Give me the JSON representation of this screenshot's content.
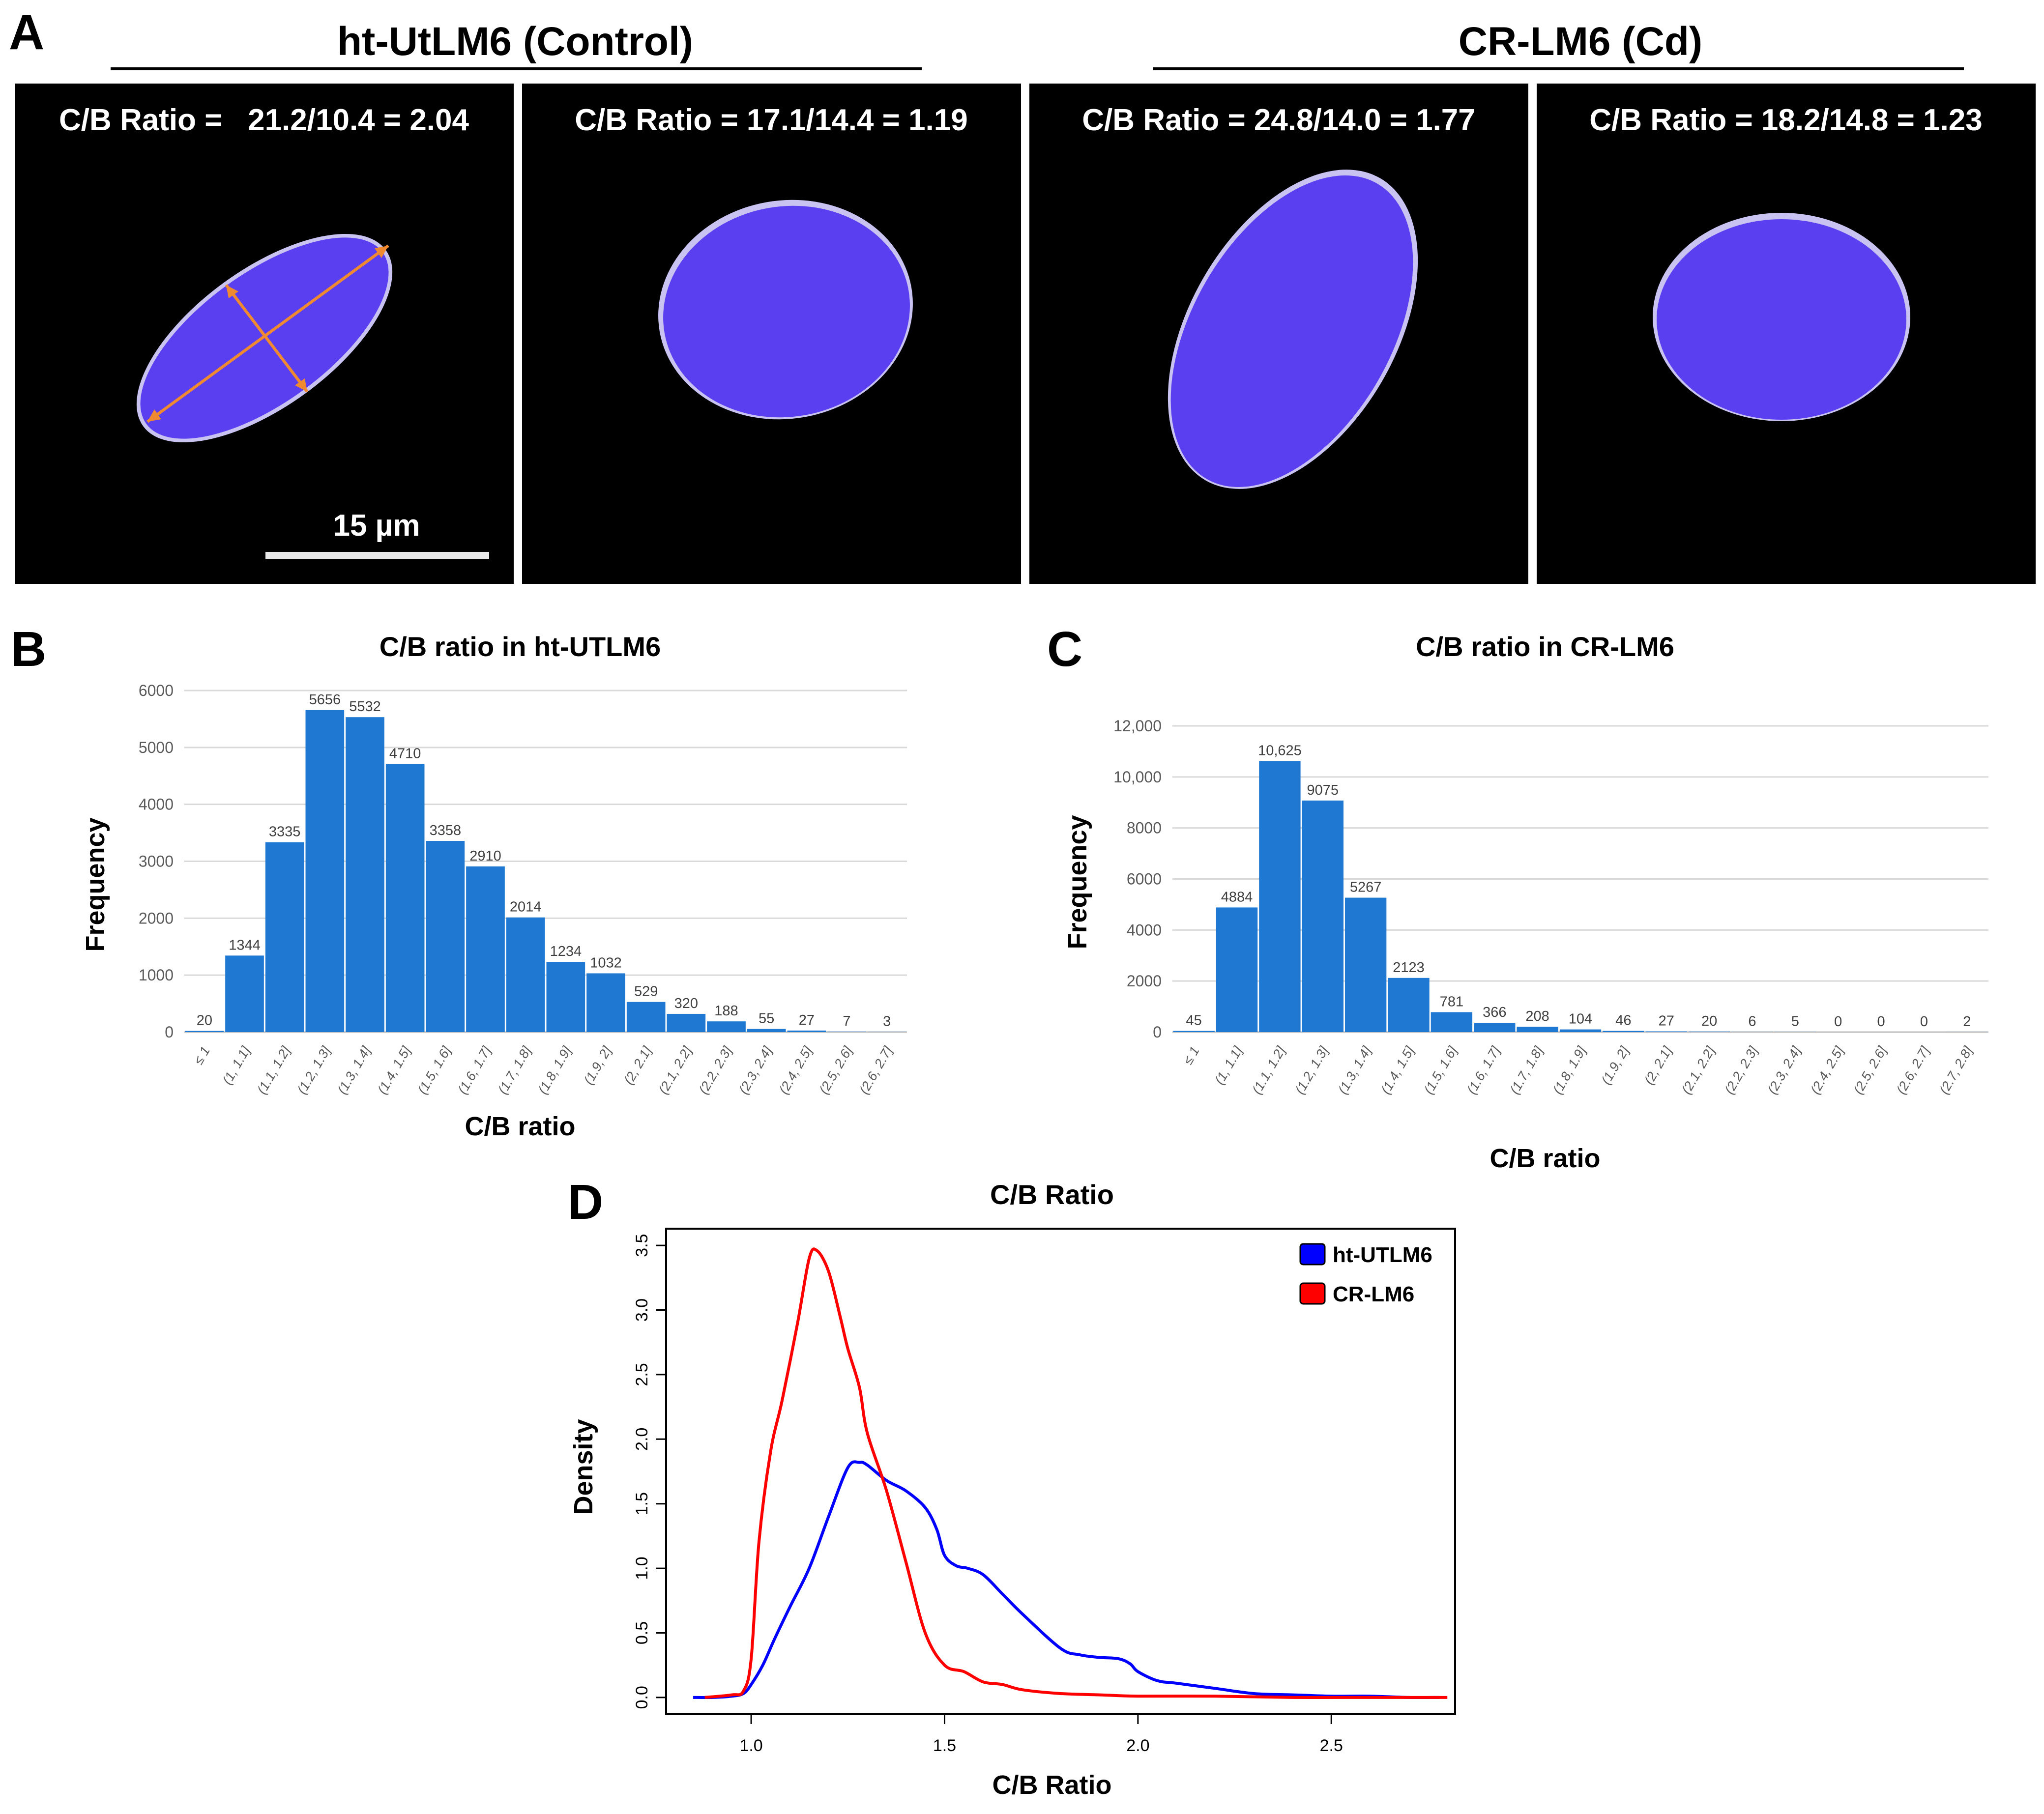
{
  "panel_a": {
    "letter": "A",
    "groups": [
      {
        "title": "ht-UtLM6 (Control)"
      },
      {
        "title": "CR-LM6 (Cd)"
      }
    ],
    "images": [
      {
        "ratio_label": "C/B Ratio =   21.2/10.4 = 2.04",
        "cell": "nucleus-elongated-with-axes"
      },
      {
        "ratio_label": "C/B Ratio = 17.1/14.4 = 1.19",
        "cell": "nucleus-round"
      },
      {
        "ratio_label": "C/B Ratio = 24.8/14.0 = 1.77",
        "cell": "nucleus-oval"
      },
      {
        "ratio_label": "C/B Ratio = 18.2/14.8 = 1.23",
        "cell": "nucleus-round"
      }
    ],
    "scale_bar": "15 µm",
    "colors": {
      "nucleus": "#5a3ff0",
      "rim": "#c9c3f2",
      "axes": "#f08a30",
      "background": "#000000"
    }
  },
  "chart_data": [
    {
      "id": "B",
      "letter": "B",
      "type": "bar",
      "title": "C/B ratio in ht-UTLM6",
      "xlabel": "C/B ratio",
      "ylabel": "Frequency",
      "ylim": [
        0,
        6000
      ],
      "yticks": [
        "0",
        "1000",
        "2000",
        "3000",
        "4000",
        "5000",
        "6000"
      ],
      "categories": [
        "≤ 1",
        "(1, 1.1]",
        "(1.1, 1.2]",
        "(1.2, 1.3]",
        "(1.3, 1.4]",
        "(1.4, 1.5]",
        "(1.5, 1.6]",
        "(1.6, 1.7]",
        "(1.7, 1.8]",
        "(1.8, 1.9]",
        "(1.9, 2]",
        "(2, 2.1]",
        "(2.1, 2.2]",
        "(2.2, 2.3]",
        "(2.3, 2.4]",
        "(2.4, 2.5]",
        "(2.5, 2.6]",
        "(2.6, 2.7]"
      ],
      "values": [
        20,
        1344,
        3335,
        5656,
        5532,
        4710,
        3358,
        2910,
        2014,
        1234,
        1032,
        529,
        320,
        188,
        55,
        27,
        7,
        3
      ],
      "value_labels": [
        "20",
        "1344",
        "3335",
        "5656",
        "5532",
        "4710",
        "3358",
        "2910",
        "2014",
        "1234",
        "1032",
        "529",
        "320",
        "188",
        "55",
        "27",
        "7",
        "3"
      ],
      "grid": true,
      "color": "#1f78d1"
    },
    {
      "id": "C",
      "letter": "C",
      "type": "bar",
      "title": "C/B ratio in CR-LM6",
      "xlabel": "C/B ratio",
      "ylabel": "Frequency",
      "ylim": [
        0,
        12000
      ],
      "yticks": [
        "0",
        "2000",
        "4000",
        "6000",
        "8000",
        "10,000",
        "12,000"
      ],
      "categories": [
        "≤ 1",
        "(1, 1.1]",
        "(1.1, 1.2]",
        "(1.2, 1.3]",
        "(1.3, 1.4]",
        "(1.4, 1.5]",
        "(1.5, 1.6]",
        "(1.6, 1.7]",
        "(1.7, 1.8]",
        "(1.8, 1.9]",
        "(1.9, 2]",
        "(2, 2.1]",
        "(2.1, 2.2]",
        "(2.2, 2.3]",
        "(2.3, 2.4]",
        "(2.4, 2.5]",
        "(2.5, 2.6]",
        "(2.6, 2.7]",
        "(2.7, 2.8]"
      ],
      "values": [
        45,
        4884,
        10625,
        9075,
        5267,
        2123,
        781,
        366,
        208,
        104,
        46,
        27,
        20,
        6,
        5,
        0,
        0,
        0,
        2
      ],
      "value_labels": [
        "45",
        "4884",
        "10,625",
        "9075",
        "5267",
        "2123",
        "781",
        "366",
        "208",
        "104",
        "46",
        "27",
        "20",
        "6",
        "5",
        "0",
        "0",
        "0",
        "2"
      ],
      "grid": true,
      "color": "#1f78d1"
    },
    {
      "id": "D",
      "letter": "D",
      "type": "line",
      "title": "C/B Ratio",
      "xlabel": "C/B Ratio",
      "ylabel": "Density",
      "xlim": [
        0.78,
        2.82
      ],
      "ylim": [
        -0.13,
        3.63
      ],
      "xticks": [
        "1.0",
        "1.5",
        "2.0",
        "2.5"
      ],
      "yticks": [
        "0.0",
        "0.5",
        "1.0",
        "1.5",
        "2.0",
        "2.5",
        "3.0",
        "3.5"
      ],
      "legend_position": "top-right",
      "series": [
        {
          "name": "ht-UTLM6",
          "color": "#0000ff",
          "x": [
            0.85,
            0.9,
            0.95,
            0.98,
            1.0,
            1.03,
            1.06,
            1.1,
            1.15,
            1.2,
            1.25,
            1.28,
            1.3,
            1.35,
            1.4,
            1.45,
            1.48,
            1.5,
            1.53,
            1.56,
            1.6,
            1.65,
            1.7,
            1.8,
            1.85,
            1.9,
            1.95,
            1.98,
            2.0,
            2.05,
            2.1,
            2.2,
            2.3,
            2.4,
            2.5,
            2.6,
            2.7,
            2.78
          ],
          "y": [
            0.0,
            0.0,
            0.01,
            0.03,
            0.1,
            0.25,
            0.45,
            0.7,
            1.0,
            1.4,
            1.78,
            1.82,
            1.8,
            1.68,
            1.6,
            1.47,
            1.3,
            1.1,
            1.02,
            1.0,
            0.95,
            0.8,
            0.65,
            0.38,
            0.33,
            0.31,
            0.3,
            0.26,
            0.2,
            0.13,
            0.11,
            0.07,
            0.03,
            0.02,
            0.01,
            0.01,
            0.0,
            0.0
          ]
        },
        {
          "name": "CR-LM6",
          "color": "#ff0000",
          "x": [
            0.88,
            0.95,
            0.98,
            1.0,
            1.02,
            1.05,
            1.08,
            1.12,
            1.15,
            1.17,
            1.2,
            1.23,
            1.25,
            1.28,
            1.3,
            1.35,
            1.4,
            1.45,
            1.5,
            1.55,
            1.6,
            1.65,
            1.7,
            1.8,
            1.9,
            2.0,
            2.2,
            2.4,
            2.6,
            2.8
          ],
          "y": [
            0.0,
            0.02,
            0.05,
            0.3,
            1.2,
            1.9,
            2.3,
            2.9,
            3.4,
            3.46,
            3.3,
            2.95,
            2.7,
            2.4,
            2.05,
            1.6,
            1.05,
            0.5,
            0.25,
            0.2,
            0.12,
            0.1,
            0.06,
            0.03,
            0.02,
            0.01,
            0.01,
            0.0,
            0.0,
            0.0
          ]
        }
      ]
    }
  ]
}
